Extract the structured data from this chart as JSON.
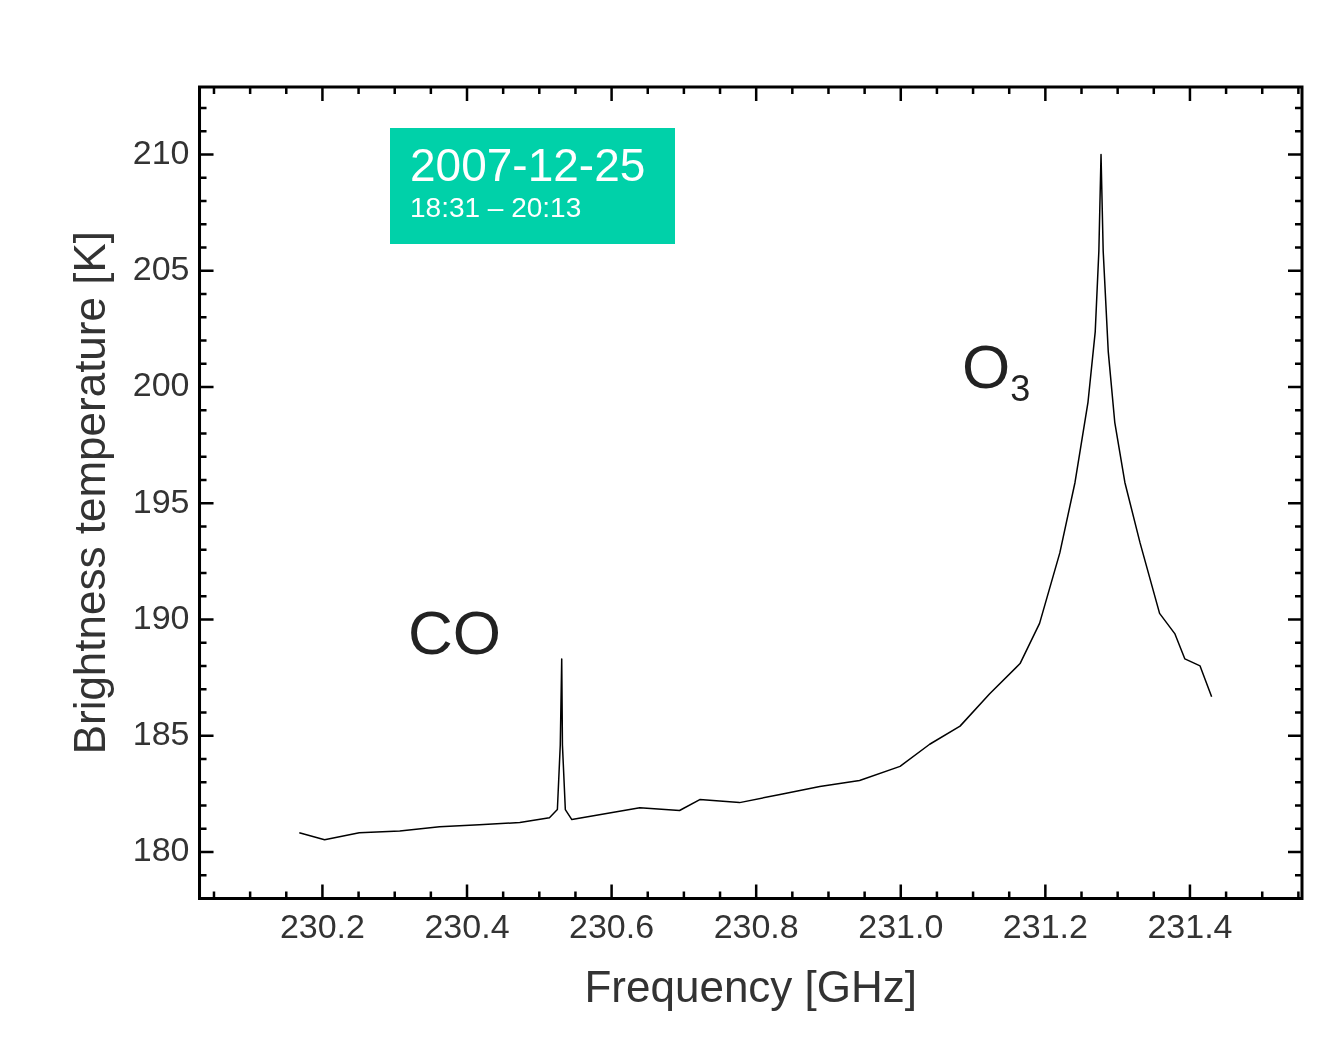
{
  "chart_data": {
    "type": "line",
    "xlabel": "Frequency [GHz]",
    "ylabel": "Brightness temperature [K]",
    "x": [
      230.168,
      230.203,
      230.251,
      230.307,
      230.362,
      230.417,
      230.473,
      230.514,
      230.525,
      230.529,
      230.531,
      230.532,
      230.536,
      230.545,
      230.583,
      230.639,
      230.694,
      230.722,
      230.777,
      230.833,
      230.888,
      230.943,
      230.999,
      231.04,
      231.082,
      231.123,
      231.165,
      231.192,
      231.22,
      231.241,
      231.259,
      231.269,
      231.274,
      231.277,
      231.28,
      231.287,
      231.296,
      231.31,
      231.331,
      231.358,
      231.379,
      231.393,
      231.414,
      231.43
    ],
    "series": [
      {
        "color": "#000000",
        "values": [
          180.82,
          180.52,
          180.82,
          180.9,
          181.08,
          181.17,
          181.26,
          181.47,
          181.82,
          184.6,
          188.3,
          184.6,
          181.82,
          181.39,
          181.6,
          181.9,
          181.78,
          182.25,
          182.12,
          182.47,
          182.81,
          183.07,
          183.68,
          184.63,
          185.41,
          186.8,
          188.1,
          189.83,
          192.86,
          195.89,
          199.35,
          202.38,
          205.84,
          210.0,
          205.84,
          201.52,
          198.48,
          195.89,
          193.29,
          190.26,
          189.39,
          188.3,
          188.0,
          186.67
        ]
      }
    ],
    "xlim": [
      230.03,
      231.555
    ],
    "ylim": [
      178,
      212.9
    ],
    "xticks": [
      {
        "value": 230.05,
        "label": null
      },
      {
        "value": 230.1,
        "label": null
      },
      {
        "value": 230.15,
        "label": null
      },
      230.2,
      {
        "value": 230.25,
        "label": null
      },
      {
        "value": 230.3,
        "label": null
      },
      {
        "value": 230.35,
        "label": null
      },
      230.4,
      {
        "value": 230.45,
        "label": null
      },
      {
        "value": 230.5,
        "label": null
      },
      {
        "value": 230.55,
        "label": null
      },
      230.6,
      {
        "value": 230.65,
        "label": null
      },
      {
        "value": 230.7,
        "label": null
      },
      {
        "value": 230.75,
        "label": null
      },
      230.8,
      {
        "value": 230.85,
        "label": null
      },
      {
        "value": 230.9,
        "label": null
      },
      {
        "value": 230.95,
        "label": null
      },
      {
        "value": 231,
        "label": "231.0"
      },
      {
        "value": 231.05,
        "label": null
      },
      {
        "value": 231.1,
        "label": null
      },
      {
        "value": 231.15,
        "label": null
      },
      231.2,
      {
        "value": 231.25,
        "label": null
      },
      {
        "value": 231.3,
        "label": null
      },
      {
        "value": 231.35,
        "label": null
      },
      231.4,
      {
        "value": 231.45,
        "label": null
      },
      {
        "value": 231.5,
        "label": null
      },
      {
        "value": 231.55,
        "label": null
      }
    ],
    "yticks": [
      {
        "value": 178,
        "label": null
      },
      {
        "value": 179,
        "label": null
      },
      180,
      {
        "value": 181,
        "label": null
      },
      {
        "value": 182,
        "label": null
      },
      {
        "value": 183,
        "label": null
      },
      {
        "value": 184,
        "label": null
      },
      185,
      {
        "value": 186,
        "label": null
      },
      {
        "value": 187,
        "label": null
      },
      {
        "value": 188,
        "label": null
      },
      {
        "value": 189,
        "label": null
      },
      190,
      {
        "value": 191,
        "label": null
      },
      {
        "value": 192,
        "label": null
      },
      {
        "value": 193,
        "label": null
      },
      {
        "value": 194,
        "label": null
      },
      195,
      {
        "value": 196,
        "label": null
      },
      {
        "value": 197,
        "label": null
      },
      {
        "value": 198,
        "label": null
      },
      {
        "value": 199,
        "label": null
      },
      200,
      {
        "value": 201,
        "label": null
      },
      {
        "value": 202,
        "label": null
      },
      {
        "value": 203,
        "label": null
      },
      {
        "value": 204,
        "label": null
      },
      205,
      {
        "value": 206,
        "label": null
      },
      {
        "value": 207,
        "label": null
      },
      {
        "value": 208,
        "label": null
      },
      {
        "value": 209,
        "label": null
      },
      210,
      {
        "value": 211,
        "label": null
      },
      {
        "value": 212,
        "label": null
      }
    ],
    "annotations": [
      "2007-12-25",
      "18:31 – 20:13",
      "CO",
      "O$_{3}$"
    ],
    "grid": false,
    "legend": false,
    "marker": "none",
    "line_style": "solid"
  }
}
